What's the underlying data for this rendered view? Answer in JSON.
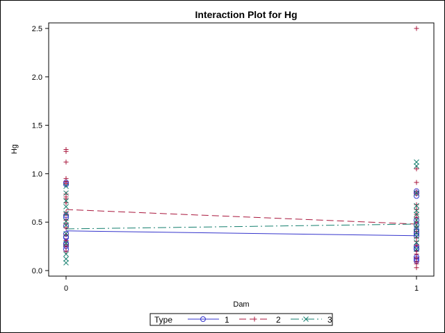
{
  "chart_data": {
    "type": "scatter",
    "title": "Interaction Plot for Hg",
    "xlabel": "Dam",
    "ylabel": "Hg",
    "xlim": [
      0,
      1
    ],
    "ylim": [
      0,
      2.5
    ],
    "x_ticks": [
      "0",
      "1"
    ],
    "y_ticks": [
      "0.0",
      "0.5",
      "1.0",
      "1.5",
      "2.0",
      "2.5"
    ],
    "legend": {
      "title": "Type",
      "placement": "bottom"
    },
    "series": [
      {
        "name": "1",
        "color": "#3333cc",
        "marker": "circle",
        "line_style": "solid",
        "mean_line": [
          0.41,
          0.36
        ],
        "points": {
          "0": [
            0.91,
            0.89,
            0.57,
            0.55,
            0.46,
            0.38,
            0.35,
            0.34,
            0.28,
            0.27,
            0.25,
            0.22
          ],
          "1": [
            0.82,
            0.8,
            0.77,
            0.52,
            0.47,
            0.42,
            0.4,
            0.38,
            0.36,
            0.25,
            0.23,
            0.22,
            0.14,
            0.12,
            0.1
          ]
        }
      },
      {
        "name": "2",
        "color": "#a8153b",
        "marker": "plus",
        "line_style": "dashed",
        "mean_line": [
          0.63,
          0.48
        ],
        "points": {
          "0": [
            1.25,
            1.23,
            1.12,
            0.95,
            0.92,
            0.9,
            0.79,
            0.76,
            0.74,
            0.7,
            0.6,
            0.58,
            0.52,
            0.48,
            0.44,
            0.37,
            0.31,
            0.27,
            0.25,
            0.2
          ],
          "1": [
            2.5,
            1.05,
            0.91,
            0.81,
            0.79,
            0.68,
            0.63,
            0.58,
            0.55,
            0.5,
            0.45,
            0.4,
            0.34,
            0.3,
            0.26,
            0.2,
            0.17,
            0.13,
            0.09,
            0.07,
            0.03
          ]
        }
      },
      {
        "name": "3",
        "color": "#137e6d",
        "marker": "x",
        "line_style": "dashdot",
        "mean_line": [
          0.43,
          0.48
        ],
        "points": {
          "0": [
            0.87,
            0.8,
            0.72,
            0.66,
            0.59,
            0.51,
            0.47,
            0.38,
            0.28,
            0.17,
            0.12,
            0.08
          ],
          "1": [
            1.12,
            1.08,
            0.8,
            0.67,
            0.62,
            0.58,
            0.52,
            0.47,
            0.44,
            0.39,
            0.35,
            0.29,
            0.22
          ]
        }
      }
    ]
  }
}
